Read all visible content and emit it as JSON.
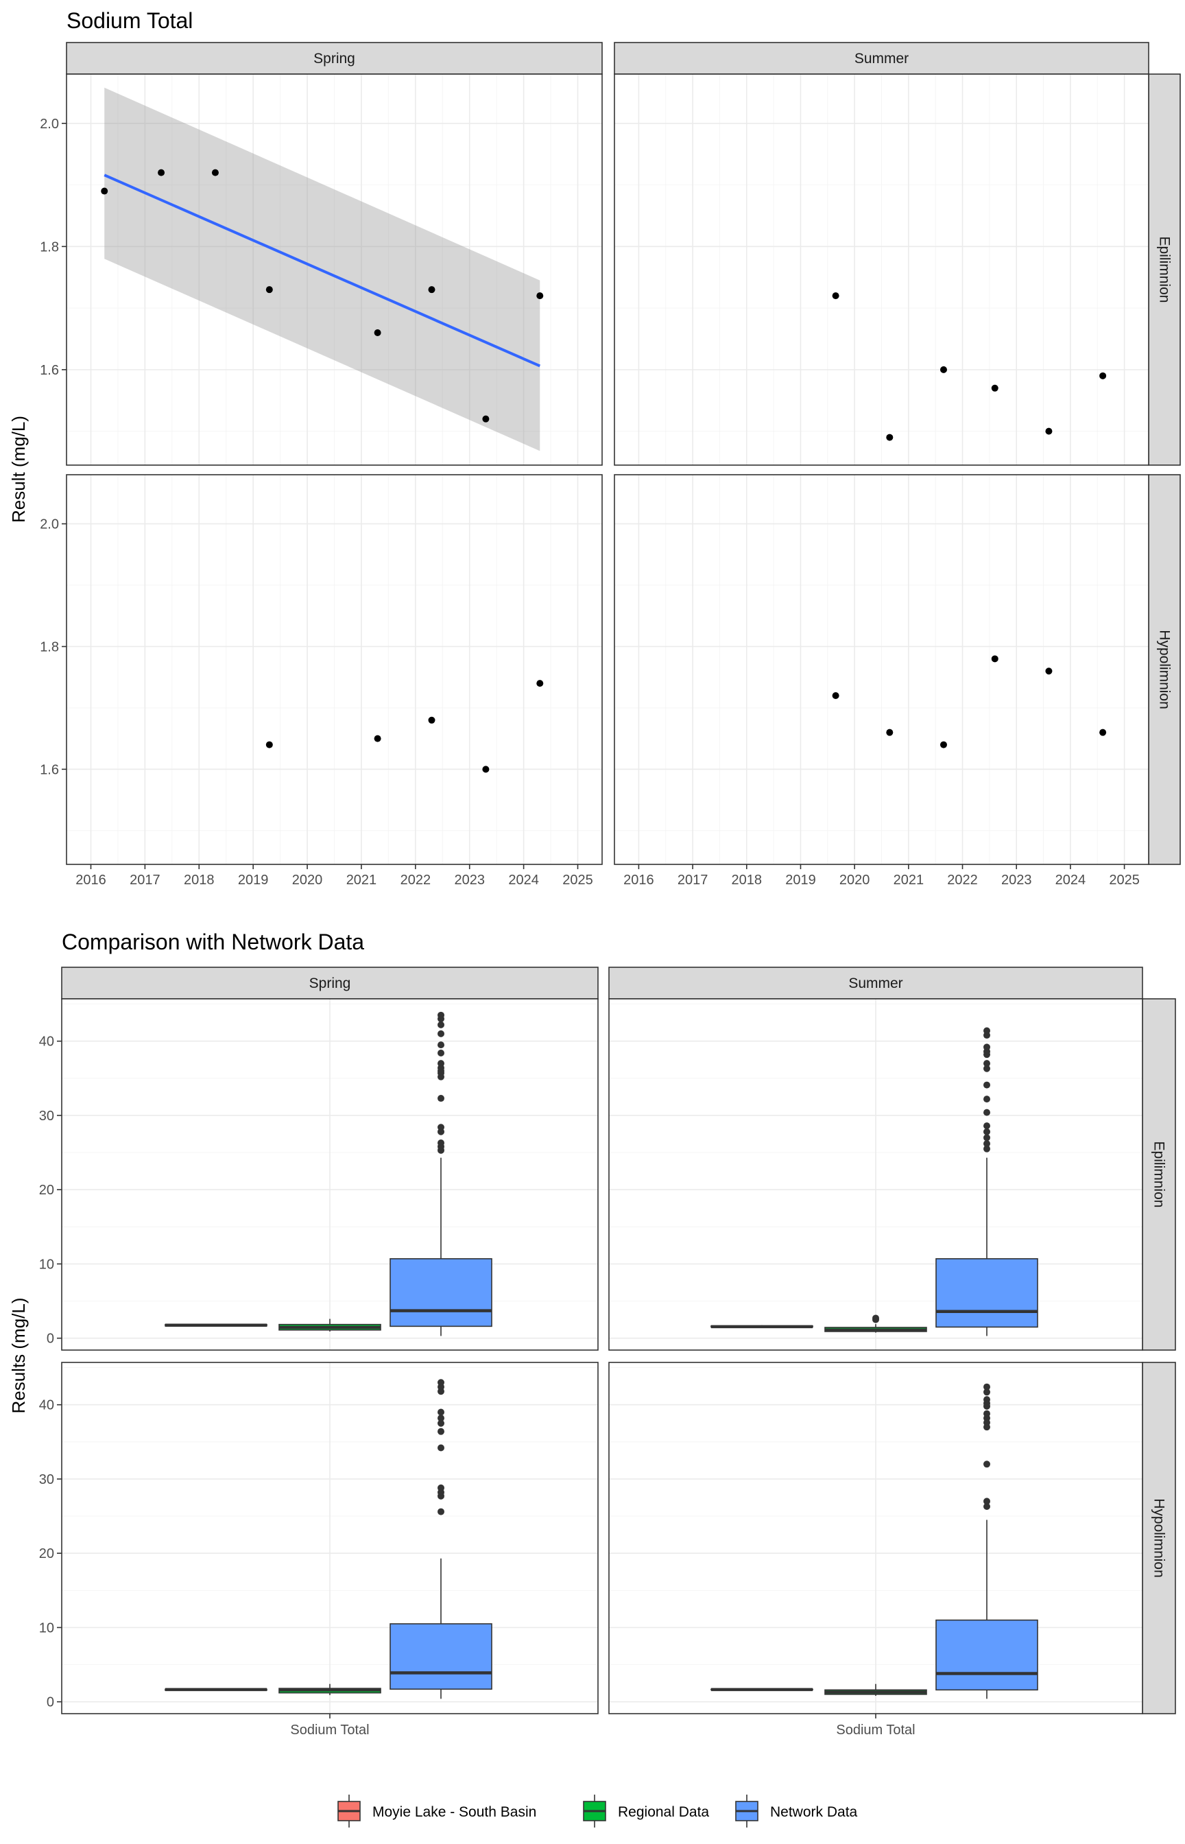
{
  "chart_data": [
    {
      "type": "scatter",
      "title": "Sodium Total",
      "xlabel": "",
      "ylabel": "Result (mg/L)",
      "x_ticks": [
        "2016",
        "2017",
        "2018",
        "2019",
        "2020",
        "2021",
        "2022",
        "2023",
        "2024",
        "2025"
      ],
      "y_ticks": [
        "1.6",
        "1.8",
        "2.0"
      ],
      "xlim": [
        2015.55,
        2025.45
      ],
      "ylim": [
        1.445,
        2.08
      ],
      "columns": [
        "Spring",
        "Summer"
      ],
      "rows": [
        "Epilimnion",
        "Hypolimnion"
      ],
      "panels": [
        {
          "column": "Spring",
          "row": "Epilimnion",
          "points": [
            [
              2016.25,
              1.89
            ],
            [
              2017.3,
              1.92
            ],
            [
              2018.3,
              1.92
            ],
            [
              2019.3,
              1.73
            ],
            [
              2021.3,
              1.66
            ],
            [
              2022.3,
              1.73
            ],
            [
              2023.3,
              1.52
            ],
            [
              2024.3,
              1.72
            ]
          ],
          "trend": {
            "x": [
              2016.25,
              2024.3
            ],
            "y": [
              1.916,
              1.606
            ],
            "ci_low": [
              1.78,
              1.468
            ],
            "ci_high": [
              2.058,
              1.745
            ]
          }
        },
        {
          "column": "Summer",
          "row": "Epilimnion",
          "points": [
            [
              2019.65,
              1.72
            ],
            [
              2020.65,
              1.49
            ],
            [
              2021.65,
              1.6
            ],
            [
              2022.6,
              1.57
            ],
            [
              2023.6,
              1.5
            ],
            [
              2024.6,
              1.59
            ]
          ]
        },
        {
          "column": "Spring",
          "row": "Hypolimnion",
          "points": [
            [
              2019.3,
              1.64
            ],
            [
              2021.3,
              1.65
            ],
            [
              2022.3,
              1.68
            ],
            [
              2023.3,
              1.6
            ],
            [
              2024.3,
              1.74
            ]
          ]
        },
        {
          "column": "Summer",
          "row": "Hypolimnion",
          "points": [
            [
              2019.65,
              1.72
            ],
            [
              2020.65,
              1.66
            ],
            [
              2021.65,
              1.64
            ],
            [
              2022.6,
              1.78
            ],
            [
              2023.6,
              1.76
            ],
            [
              2024.6,
              1.66
            ]
          ]
        }
      ]
    },
    {
      "type": "box",
      "title": "Comparison with Network Data",
      "xlabel": "",
      "ylabel": "Results (mg/L)",
      "category": "Sodium Total",
      "y_ticks": [
        "0",
        "10",
        "20",
        "30",
        "40"
      ],
      "ylim": [
        -1.6,
        45.7
      ],
      "columns": [
        "Spring",
        "Summer"
      ],
      "rows": [
        "Epilimnion",
        "Hypolimnion"
      ],
      "series": [
        {
          "name": "Moyie Lake - South Basin",
          "color": "#f8766d"
        },
        {
          "name": "Regional Data",
          "color": "#00ba38"
        },
        {
          "name": "Network Data",
          "color": "#619cff"
        }
      ],
      "legend_position": "bottom",
      "panels": [
        {
          "column": "Spring",
          "row": "Epilimnion",
          "boxes": [
            {
              "q1": 1.65,
              "median": 1.75,
              "q3": 1.85,
              "low": 1.6,
              "high": 1.9,
              "outliers": []
            },
            {
              "q1": 1.1,
              "median": 1.45,
              "q3": 1.85,
              "low": 0.9,
              "high": 2.6,
              "outliers": []
            },
            {
              "q1": 1.6,
              "median": 3.7,
              "q3": 10.7,
              "low": 0.3,
              "high": 24.3,
              "outliers": [
                25.3,
                25.8,
                26.3,
                27.8,
                28.4,
                32.3,
                35.2,
                35.7,
                36.0,
                36.4,
                37.0,
                38.4,
                39.5,
                41.0,
                42.2,
                43.0,
                43.5
              ]
            }
          ]
        },
        {
          "column": "Summer",
          "row": "Epilimnion",
          "boxes": [
            {
              "q1": 1.5,
              "median": 1.55,
              "q3": 1.65,
              "low": 1.45,
              "high": 1.75,
              "outliers": []
            },
            {
              "q1": 0.9,
              "median": 1.1,
              "q3": 1.45,
              "low": 0.75,
              "high": 1.9,
              "outliers": [
                2.5,
                2.7
              ]
            },
            {
              "q1": 1.5,
              "median": 3.6,
              "q3": 10.7,
              "low": 0.3,
              "high": 24.3,
              "outliers": [
                25.5,
                26.2,
                27.0,
                27.8,
                28.6,
                30.4,
                32.2,
                34.1,
                36.3,
                37.0,
                38.2,
                38.6,
                39.2,
                40.8,
                41.4
              ]
            }
          ]
        },
        {
          "column": "Spring",
          "row": "Hypolimnion",
          "boxes": [
            {
              "q1": 1.55,
              "median": 1.65,
              "q3": 1.7,
              "low": 1.5,
              "high": 1.75,
              "outliers": []
            },
            {
              "q1": 1.2,
              "median": 1.6,
              "q3": 1.8,
              "low": 0.9,
              "high": 2.4,
              "outliers": []
            },
            {
              "q1": 1.7,
              "median": 3.9,
              "q3": 10.5,
              "low": 0.4,
              "high": 19.3,
              "outliers": [
                25.6,
                27.7,
                28.2,
                28.8,
                34.2,
                36.4,
                37.5,
                38.2,
                39.0,
                41.8,
                42.4,
                43.0
              ]
            }
          ]
        },
        {
          "column": "Summer",
          "row": "Hypolimnion",
          "boxes": [
            {
              "q1": 1.6,
              "median": 1.65,
              "q3": 1.7,
              "low": 1.55,
              "high": 1.75,
              "outliers": []
            },
            {
              "q1": 1.0,
              "median": 1.3,
              "q3": 1.6,
              "low": 0.8,
              "high": 2.4,
              "outliers": []
            },
            {
              "q1": 1.6,
              "median": 3.8,
              "q3": 11.0,
              "low": 0.4,
              "high": 24.5,
              "outliers": [
                26.3,
                27.0,
                32.0,
                37.0,
                37.6,
                38.2,
                38.8,
                39.8,
                40.2,
                40.7,
                41.7,
                42.4
              ]
            }
          ]
        }
      ]
    }
  ]
}
